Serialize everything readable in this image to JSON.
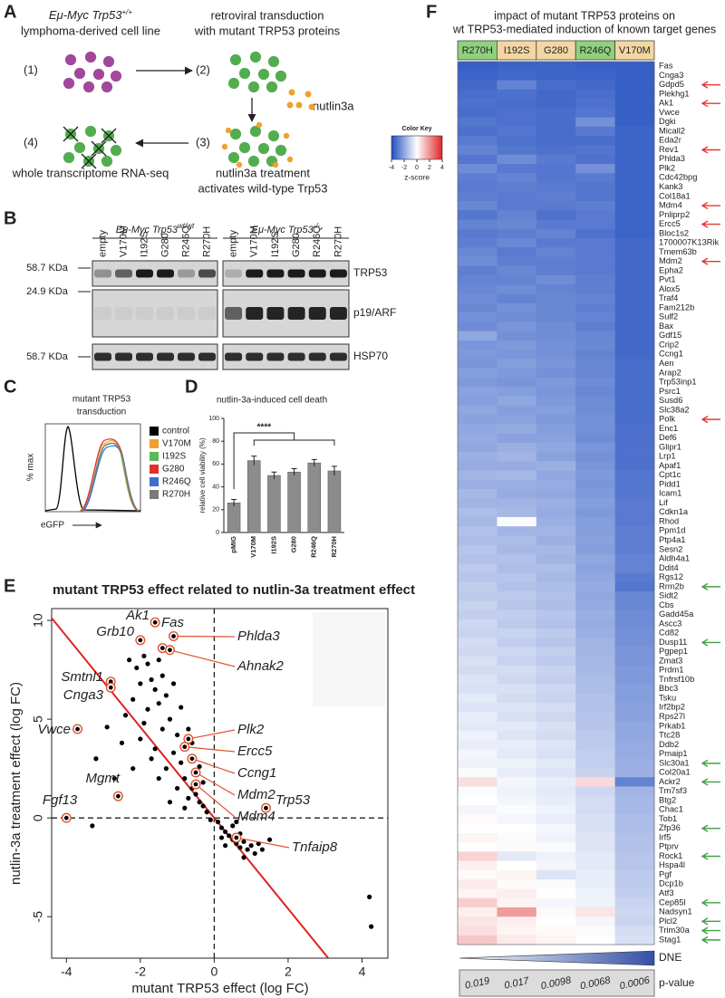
{
  "panel_letters": [
    "A",
    "B",
    "C",
    "D",
    "E",
    "F"
  ],
  "panel_a": {
    "cell_line": "Eμ-Myc Trp53",
    "cell_line_sup": "+/+",
    "cell_line_2": "lymphoma-derived cell line",
    "steps": [
      "(1)",
      "(2)",
      "(3)",
      "(4)"
    ],
    "transduction": [
      "retroviral transduction",
      "with mutant TRP53 proteins"
    ],
    "nutlin": "nutlin3a",
    "treatment": [
      "nutlin3a treatment",
      "activates wild-type Trp53"
    ],
    "rnaseq": "whole transcriptome RNA-seq"
  },
  "panel_b": {
    "groups": [
      {
        "name": "Eμ-Myc Trp53",
        "sup": "wt/wt"
      },
      {
        "name": "Eμ-Myc Trp53",
        "sup": "-/-"
      }
    ],
    "lanes": [
      "empty",
      "V170M",
      "I192S",
      "G280",
      "R246Q",
      "R270H"
    ],
    "sizes": [
      "58.7 KDa",
      "24.9 KDa",
      "58.7 KDa"
    ],
    "proteins": [
      "TRP53",
      "p19/ARF",
      "HSP70"
    ]
  },
  "panel_c": {
    "title": [
      "mutant TRP53",
      "transduction"
    ],
    "ylabel": "% max",
    "xlabel": "eGFP",
    "legend": [
      {
        "name": "control",
        "color": "#000000"
      },
      {
        "name": "V170M",
        "color": "#f0a030"
      },
      {
        "name": "I192S",
        "color": "#5cb85c"
      },
      {
        "name": "G280",
        "color": "#e03030"
      },
      {
        "name": "R246Q",
        "color": "#3a6fd0"
      },
      {
        "name": "R270H",
        "color": "#7a7a7a"
      }
    ]
  },
  "chart_data": [
    {
      "type": "bar",
      "title": "nutlin-3a-induced cell death",
      "ylabel": "relative cell viability (%)",
      "categories": [
        "pMIG",
        "V170M",
        "I192S",
        "G280",
        "R246Q",
        "R270H"
      ],
      "values": [
        26,
        63,
        50,
        53,
        61,
        54
      ],
      "errors": [
        3,
        4,
        3,
        3,
        3,
        4
      ],
      "color": "#8c8c8c",
      "ylim": [
        0,
        100
      ],
      "yticks": [
        0,
        20,
        40,
        60,
        80,
        100
      ],
      "significance": "****"
    },
    {
      "type": "scatter",
      "title": "mutant TRP53 effect related to nutlin-3a treatment effect",
      "xlabel": "mutant TRP53 effect (log FC)",
      "ylabel": "nutlin-3a treatment effect (log FC)",
      "color": "#000000",
      "annotation_color": "#e0522f",
      "xlim": [
        -4.4,
        4.7
      ],
      "ylim": [
        -7.1,
        10.6
      ],
      "xticks": [
        -4,
        -2,
        0,
        2,
        4
      ],
      "yticks": [
        -5,
        0,
        5,
        10
      ],
      "fit": {
        "slope": -2.3,
        "intercept": 0,
        "color": "#e02020"
      },
      "x": [
        -2.1,
        -1.9,
        -1.7,
        -1.6,
        -2.2,
        -1.8,
        -1.5,
        -1.3,
        -1.9,
        -1.4,
        -1.2,
        -1.0,
        -2.4,
        -2.0,
        -1.6,
        -1.1,
        -0.9,
        -1.3,
        -0.8,
        -0.6,
        -0.5,
        -0.7,
        -0.4,
        -0.3,
        -1.5,
        -1.7,
        -2.5,
        -2.2,
        -1.0,
        -0.2,
        -2.9,
        -3.2,
        -2.7,
        -1.2,
        -3.3,
        -1.8,
        -1.4,
        -2.3,
        -1.1,
        -0.9,
        -0.6,
        -0.4,
        -0.3,
        -0.8,
        0.1,
        0.2,
        0.3,
        0.4,
        0.5,
        0.6,
        0.7,
        0.8,
        0.9,
        1.0,
        1.1,
        1.2,
        0.3,
        0.5,
        0.7,
        1.3,
        0.2,
        0.8,
        1.5,
        -0.1,
        0.6,
        4.2,
        4.25,
        -2.0,
        -1.5,
        -0.7
      ],
      "values": [
        7.6,
        8.2,
        7.0,
        6.5,
        6.0,
        5.5,
        5.8,
        6.2,
        4.8,
        4.5,
        5.0,
        4.2,
        5.2,
        4.0,
        3.5,
        3.3,
        2.8,
        2.5,
        2.0,
        1.5,
        1.2,
        1.0,
        0.8,
        0.6,
        2.0,
        3.0,
        3.8,
        2.5,
        1.5,
        0.3,
        4.6,
        3.0,
        2.0,
        0.8,
        -0.4,
        7.8,
        7.2,
        8.0,
        6.8,
        5.6,
        3.8,
        2.6,
        1.8,
        0.5,
        -0.2,
        -0.5,
        -0.7,
        -0.9,
        -1.1,
        -1.3,
        -1.5,
        -1.2,
        -1.6,
        -1.4,
        -1.8,
        -1.3,
        -1.4,
        -0.4,
        -0.8,
        -1.6,
        -1.0,
        -2.0,
        -1.1,
        -0.1,
        -0.2,
        -4.0,
        -5.5,
        6.8,
        8.0,
        4.5
      ],
      "annotations": [
        {
          "text": "Grb10",
          "x": -2.0,
          "y": 9.0
        },
        {
          "text": "Ak1",
          "x": -1.6,
          "y": 9.9
        },
        {
          "text": "Fas",
          "x": -1.4,
          "y": 8.6
        },
        {
          "text": "Phlda3",
          "x": -1.1,
          "y": 9.2
        },
        {
          "text": "Ahnak2",
          "x": -1.2,
          "y": 8.5
        },
        {
          "text": "Smtnl1",
          "x": -2.8,
          "y": 6.9
        },
        {
          "text": "Cnga3",
          "x": -2.8,
          "y": 6.6
        },
        {
          "text": "Vwce",
          "x": -3.7,
          "y": 4.5
        },
        {
          "text": "Plk2",
          "x": -0.7,
          "y": 4.0
        },
        {
          "text": "Ercc5",
          "x": -0.8,
          "y": 3.6
        },
        {
          "text": "Ccng1",
          "x": -0.6,
          "y": 3.0
        },
        {
          "text": "Mdm2",
          "x": -0.5,
          "y": 2.3
        },
        {
          "text": "Mdm4",
          "x": -0.5,
          "y": 1.7
        },
        {
          "text": "Mgmt",
          "x": -2.6,
          "y": 1.1
        },
        {
          "text": "Fgf13",
          "x": -4.0,
          "y": 0
        },
        {
          "text": "Trp53",
          "x": 1.4,
          "y": 0.5
        },
        {
          "text": "Tnfaip8",
          "x": 0.6,
          "y": -1.0
        }
      ]
    },
    {
      "type": "heatmap",
      "title": [
        "impact of mutant TRP53 proteins on",
        "wt TRP53-mediated induction of known target genes"
      ],
      "columns": [
        "R270H",
        "I192S",
        "G280",
        "R246Q",
        "V170M"
      ],
      "column_colors": [
        "#8fd17e",
        "#f3d7a2",
        "#f3d7a2",
        "#8fd17e",
        "#f3d7a2"
      ],
      "zlim": [
        -4,
        4
      ],
      "color_key": {
        "title": "Color Key",
        "label": "z-score",
        "ticks": [
          -4,
          -2,
          0,
          2,
          4
        ]
      },
      "rows": [
        "Fas",
        "Cnga3",
        "Gdpd5",
        "Plekhg1",
        "Ak1",
        "Vwce",
        "Dgki",
        "Micall2",
        "Eda2r",
        "Rev1",
        "Phlda3",
        "Plk2",
        "Cdc42bpg",
        "Kank3",
        "Col18a1",
        "Mdm4",
        "Pnliprp2",
        "Ercc5",
        "Bloc1s2",
        "1700007K13Rik",
        "Tmem63b",
        "Mdm2",
        "Epha2",
        "Pvt1",
        "Alox5",
        "Traf4",
        "Fam212b",
        "Sulf2",
        "Bax",
        "Gdf15",
        "Crip2",
        "Ccng1",
        "Aen",
        "Arap2",
        "Trp53inp1",
        "Psrc1",
        "Susd6",
        "Slc38a2",
        "Polk",
        "Enc1",
        "Def6",
        "Glipr1",
        "Lrp1",
        "Apaf1",
        "Cpt1c",
        "Pidd1",
        "Icam1",
        "Lif",
        "Cdkn1a",
        "Rhod",
        "Ppm1d",
        "Ptp4a1",
        "Sesn2",
        "Aldh4a1",
        "Ddit4",
        "Rgs12",
        "Rrm2b",
        "Sidt2",
        "Cbs",
        "Gadd45a",
        "Ascc3",
        "Cd82",
        "Dusp11",
        "Pgpep1",
        "Zmat3",
        "Prdm1",
        "Tnfrsf10b",
        "Bbc3",
        "Tsku",
        "Irf2bp2",
        "Rps27l",
        "Prkab1",
        "Ttc28",
        "Ddb2",
        "Pmaip1",
        "Slc30a1",
        "Col20a1",
        "Ackr2",
        "Tm7sf3",
        "Btg2",
        "Chac1",
        "Tob1",
        "Zfp36",
        "Irf5",
        "Ptprv",
        "Rock1",
        "Hspa4l",
        "Pgf",
        "Dcp1b",
        "Atf3",
        "Cep85l",
        "Nadsyn1",
        "Plcl2",
        "Trim30a",
        "Stag1"
      ],
      "values": [
        [
          -3.6,
          -3.5,
          -3.5,
          -3.6,
          -3.6
        ],
        [
          -3.5,
          -3.4,
          -3.5,
          -3.5,
          -3.6
        ],
        [
          -3.4,
          -2.8,
          -3.3,
          -3.4,
          -3.6
        ],
        [
          -3.3,
          -3.2,
          -3.4,
          -3.3,
          -3.6
        ],
        [
          -3.2,
          -3.3,
          -3.4,
          -3.2,
          -3.6
        ],
        [
          -3.3,
          -3.2,
          -3.3,
          -3.1,
          -3.6
        ],
        [
          -3.1,
          -3.2,
          -3.3,
          -2.5,
          -3.6
        ],
        [
          -3.2,
          -3.1,
          -3.3,
          -3.0,
          -3.5
        ],
        [
          -3.0,
          -3.2,
          -3.3,
          -3.3,
          -3.5
        ],
        [
          -2.8,
          -3.1,
          -3.2,
          -3.1,
          -3.5
        ],
        [
          -3.1,
          -2.6,
          -3.0,
          -3.2,
          -3.5
        ],
        [
          -2.6,
          -3.0,
          -3.1,
          -2.5,
          -3.5
        ],
        [
          -2.9,
          -2.8,
          -3.1,
          -3.0,
          -3.5
        ],
        [
          -3.0,
          -2.9,
          -3.0,
          -3.1,
          -3.5
        ],
        [
          -2.9,
          -3.0,
          -2.9,
          -3.1,
          -3.5
        ],
        [
          -2.7,
          -3.0,
          -3.0,
          -2.9,
          -3.5
        ],
        [
          -3.1,
          -2.8,
          -3.2,
          -3.0,
          -3.5
        ],
        [
          -2.8,
          -2.7,
          -3.0,
          -3.0,
          -3.5
        ],
        [
          -3.0,
          -2.9,
          -2.8,
          -3.2,
          -3.5
        ],
        [
          -2.9,
          -2.7,
          -3.0,
          -3.0,
          -3.4
        ],
        [
          -2.7,
          -3.0,
          -2.8,
          -3.0,
          -3.4
        ],
        [
          -2.6,
          -2.9,
          -2.9,
          -3.0,
          -3.4
        ],
        [
          -2.9,
          -2.7,
          -2.9,
          -3.0,
          -3.4
        ],
        [
          -2.8,
          -2.8,
          -2.6,
          -2.9,
          -3.4
        ],
        [
          -2.7,
          -2.6,
          -2.8,
          -2.9,
          -3.4
        ],
        [
          -2.6,
          -2.8,
          -2.7,
          -2.8,
          -3.4
        ],
        [
          -2.7,
          -2.5,
          -2.7,
          -2.9,
          -3.4
        ],
        [
          -2.5,
          -2.6,
          -2.7,
          -2.8,
          -3.4
        ],
        [
          -2.6,
          -2.4,
          -2.6,
          -2.9,
          -3.4
        ],
        [
          -2.0,
          -2.5,
          -2.6,
          -2.7,
          -3.4
        ],
        [
          -2.4,
          -2.3,
          -2.5,
          -2.7,
          -3.4
        ],
        [
          -2.3,
          -2.4,
          -2.5,
          -2.8,
          -3.4
        ],
        [
          -2.4,
          -2.2,
          -2.4,
          -2.7,
          -3.3
        ],
        [
          -2.2,
          -2.3,
          -2.5,
          -2.7,
          -3.3
        ],
        [
          -2.3,
          -2.4,
          -2.3,
          -2.6,
          -3.3
        ],
        [
          -2.1,
          -2.2,
          -2.4,
          -2.7,
          -3.3
        ],
        [
          -2.2,
          -2.0,
          -2.3,
          -2.6,
          -3.3
        ],
        [
          -2.0,
          -2.2,
          -2.2,
          -2.6,
          -3.3
        ],
        [
          -2.1,
          -2.1,
          -2.3,
          -2.5,
          -3.3
        ],
        [
          -2.0,
          -1.9,
          -2.2,
          -2.5,
          -3.2
        ],
        [
          -1.9,
          -2.1,
          -2.1,
          -2.6,
          -3.2
        ],
        [
          -2.0,
          -1.8,
          -2.0,
          -2.4,
          -3.2
        ],
        [
          -1.8,
          -1.7,
          -2.1,
          -2.5,
          -3.2
        ],
        [
          -1.9,
          -1.9,
          -1.8,
          -2.4,
          -3.2
        ],
        [
          -1.7,
          -1.6,
          -2.0,
          -2.3,
          -3.1
        ],
        [
          -1.8,
          -1.8,
          -1.9,
          -2.4,
          -3.1
        ],
        [
          -1.6,
          -1.9,
          -2.0,
          -2.3,
          -3.1
        ],
        [
          -1.7,
          -1.7,
          -1.8,
          -2.2,
          -3.0
        ],
        [
          -1.5,
          -1.6,
          -1.9,
          -2.3,
          -3.0
        ],
        [
          -1.6,
          -0.1,
          -1.8,
          -2.2,
          -3.0
        ],
        [
          -1.4,
          -1.7,
          -1.7,
          -2.2,
          -2.9
        ],
        [
          -1.5,
          -1.5,
          -1.8,
          -2.1,
          -2.9
        ],
        [
          -1.3,
          -1.6,
          -1.6,
          -2.2,
          -2.9
        ],
        [
          -1.4,
          -1.4,
          -1.7,
          -2.0,
          -2.8
        ],
        [
          -1.2,
          -1.5,
          -1.5,
          -2.1,
          -2.8
        ],
        [
          -1.3,
          -1.3,
          -1.6,
          -2.0,
          -3.0
        ],
        [
          -1.1,
          -1.4,
          -1.5,
          -1.9,
          -3.1
        ],
        [
          -1.2,
          -1.2,
          -1.4,
          -2.0,
          -2.7
        ],
        [
          -1.0,
          -1.3,
          -1.5,
          -1.9,
          -2.7
        ],
        [
          -1.1,
          -1.1,
          -1.3,
          -1.8,
          -2.6
        ],
        [
          -0.9,
          -1.2,
          -1.4,
          -1.9,
          -2.6
        ],
        [
          -1.0,
          -1.0,
          -1.2,
          -1.8,
          -2.5
        ],
        [
          -0.8,
          -1.1,
          -1.3,
          -1.7,
          -2.5
        ],
        [
          -0.9,
          -0.9,
          -1.1,
          -1.7,
          -2.4
        ],
        [
          -0.7,
          -1.0,
          -1.2,
          -1.6,
          -2.4
        ],
        [
          -0.8,
          -0.8,
          -1.0,
          -1.6,
          -2.3
        ],
        [
          -0.6,
          -0.9,
          -1.1,
          -1.5,
          -2.3
        ],
        [
          -0.7,
          -0.7,
          -0.9,
          -1.5,
          -2.2
        ],
        [
          -0.5,
          -0.8,
          -1.0,
          -1.4,
          -2.2
        ],
        [
          -0.6,
          -0.6,
          -0.8,
          -1.4,
          -2.1
        ],
        [
          -0.4,
          -0.7,
          -0.9,
          -1.3,
          -2.1
        ],
        [
          -0.5,
          -0.5,
          -0.7,
          -1.3,
          -2.0
        ],
        [
          -0.3,
          -0.6,
          -0.8,
          -1.2,
          -2.0
        ],
        [
          -0.4,
          -0.4,
          -0.6,
          -1.2,
          -1.9
        ],
        [
          -0.2,
          -0.5,
          -0.7,
          -1.1,
          -1.9
        ],
        [
          -0.3,
          -0.3,
          -0.5,
          -1.1,
          -1.8
        ],
        [
          -0.1,
          -0.4,
          -0.6,
          -1.0,
          -1.8
        ],
        [
          0.6,
          -0.2,
          -0.4,
          0.7,
          -2.8
        ],
        [
          -0.1,
          -0.3,
          -0.5,
          -0.9,
          -1.7
        ],
        [
          0.0,
          -0.2,
          -0.4,
          -0.8,
          -1.6
        ],
        [
          -0.2,
          -0.1,
          -0.3,
          -0.8,
          -1.6
        ],
        [
          0.1,
          -0.2,
          -0.4,
          -0.7,
          -1.5
        ],
        [
          0.0,
          0.0,
          -0.2,
          -0.7,
          -1.5
        ],
        [
          0.2,
          -0.1,
          -0.3,
          -0.6,
          -1.4
        ],
        [
          0.0,
          0.1,
          -0.1,
          -0.6,
          -1.4
        ],
        [
          0.8,
          -0.5,
          -0.3,
          -0.5,
          -1.3
        ],
        [
          0.3,
          0.0,
          -0.2,
          -0.5,
          -1.3
        ],
        [
          0.1,
          0.2,
          -0.6,
          -0.4,
          -1.2
        ],
        [
          0.4,
          0.1,
          -0.1,
          -0.4,
          -1.2
        ],
        [
          0.2,
          0.3,
          0.0,
          -0.3,
          -1.1
        ],
        [
          0.9,
          0.2,
          -0.2,
          -0.3,
          -1.0
        ],
        [
          0.3,
          1.8,
          0.1,
          0.5,
          -0.9
        ],
        [
          0.5,
          0.3,
          0.0,
          -0.2,
          -1.0
        ],
        [
          0.6,
          0.2,
          0.1,
          -0.1,
          -0.8
        ],
        [
          1.0,
          0.4,
          0.2,
          0.0,
          -0.7
        ]
      ],
      "dne": "DNE",
      "p_value_label": "p-value",
      "p_values": [
        0.019,
        0.017,
        0.0098,
        0.0068,
        0.0006
      ]
    }
  ]
}
